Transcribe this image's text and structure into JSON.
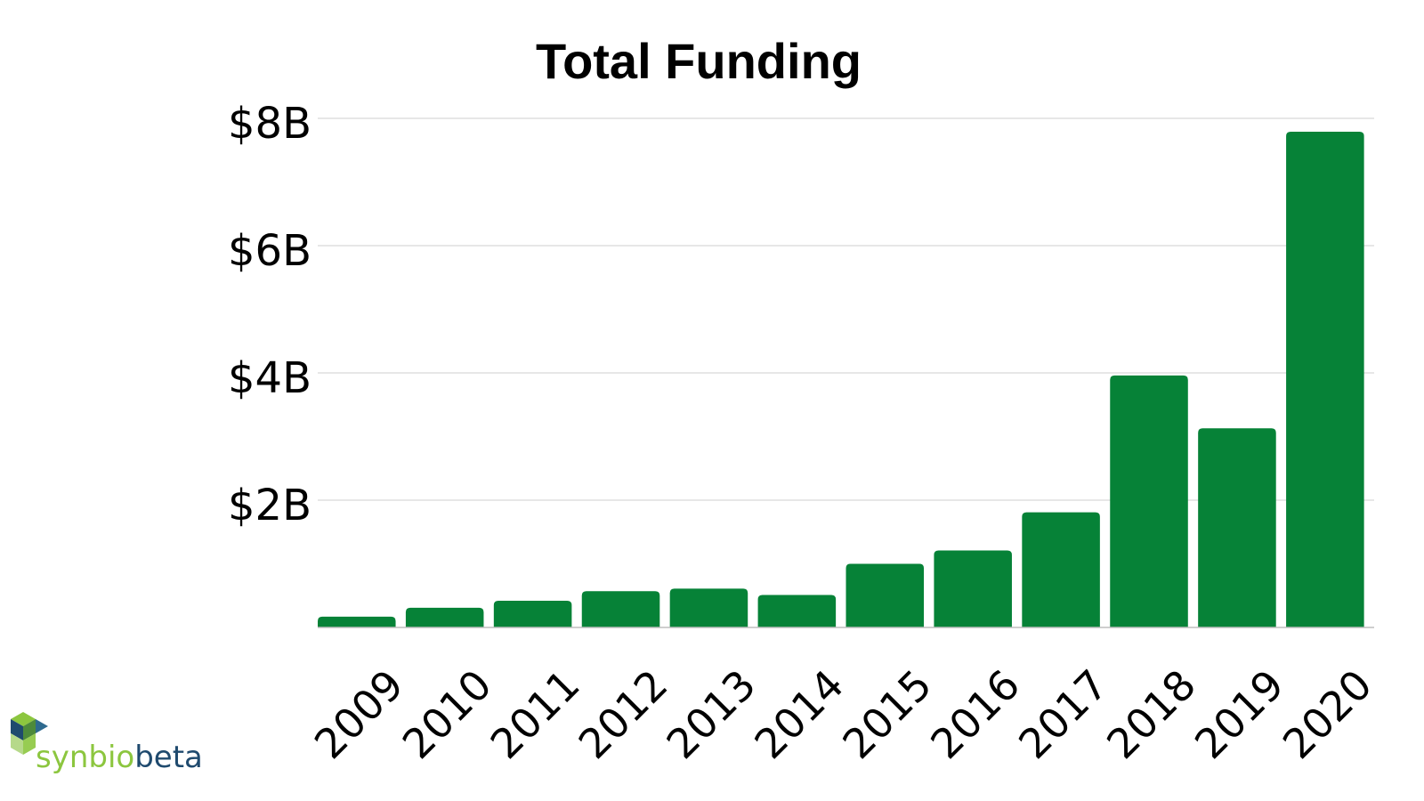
{
  "chart_data": {
    "type": "bar",
    "title": "Total Funding",
    "xlabel": "",
    "ylabel": "",
    "categories": [
      "2009",
      "2010",
      "2011",
      "2012",
      "2013",
      "2014",
      "2015",
      "2016",
      "2017",
      "2018",
      "2019",
      "2020"
    ],
    "values": [
      0.17,
      0.31,
      0.42,
      0.57,
      0.61,
      0.51,
      1.0,
      1.21,
      1.81,
      3.96,
      3.13,
      7.79
    ],
    "value_unit": "billion USD",
    "ylim": [
      0,
      8
    ],
    "yticks": [
      {
        "value": 2,
        "label": "$2B"
      },
      {
        "value": 4,
        "label": "$4B"
      },
      {
        "value": 6,
        "label": "$6B"
      },
      {
        "value": 8,
        "label": "$8B"
      }
    ],
    "grid": true,
    "legend": "none",
    "bar_color": "#068237"
  },
  "logo": {
    "text_part1": "synbio",
    "text_part2": "beta",
    "color_part1": "#8cc63f",
    "color_part2": "#1f4a6e"
  }
}
